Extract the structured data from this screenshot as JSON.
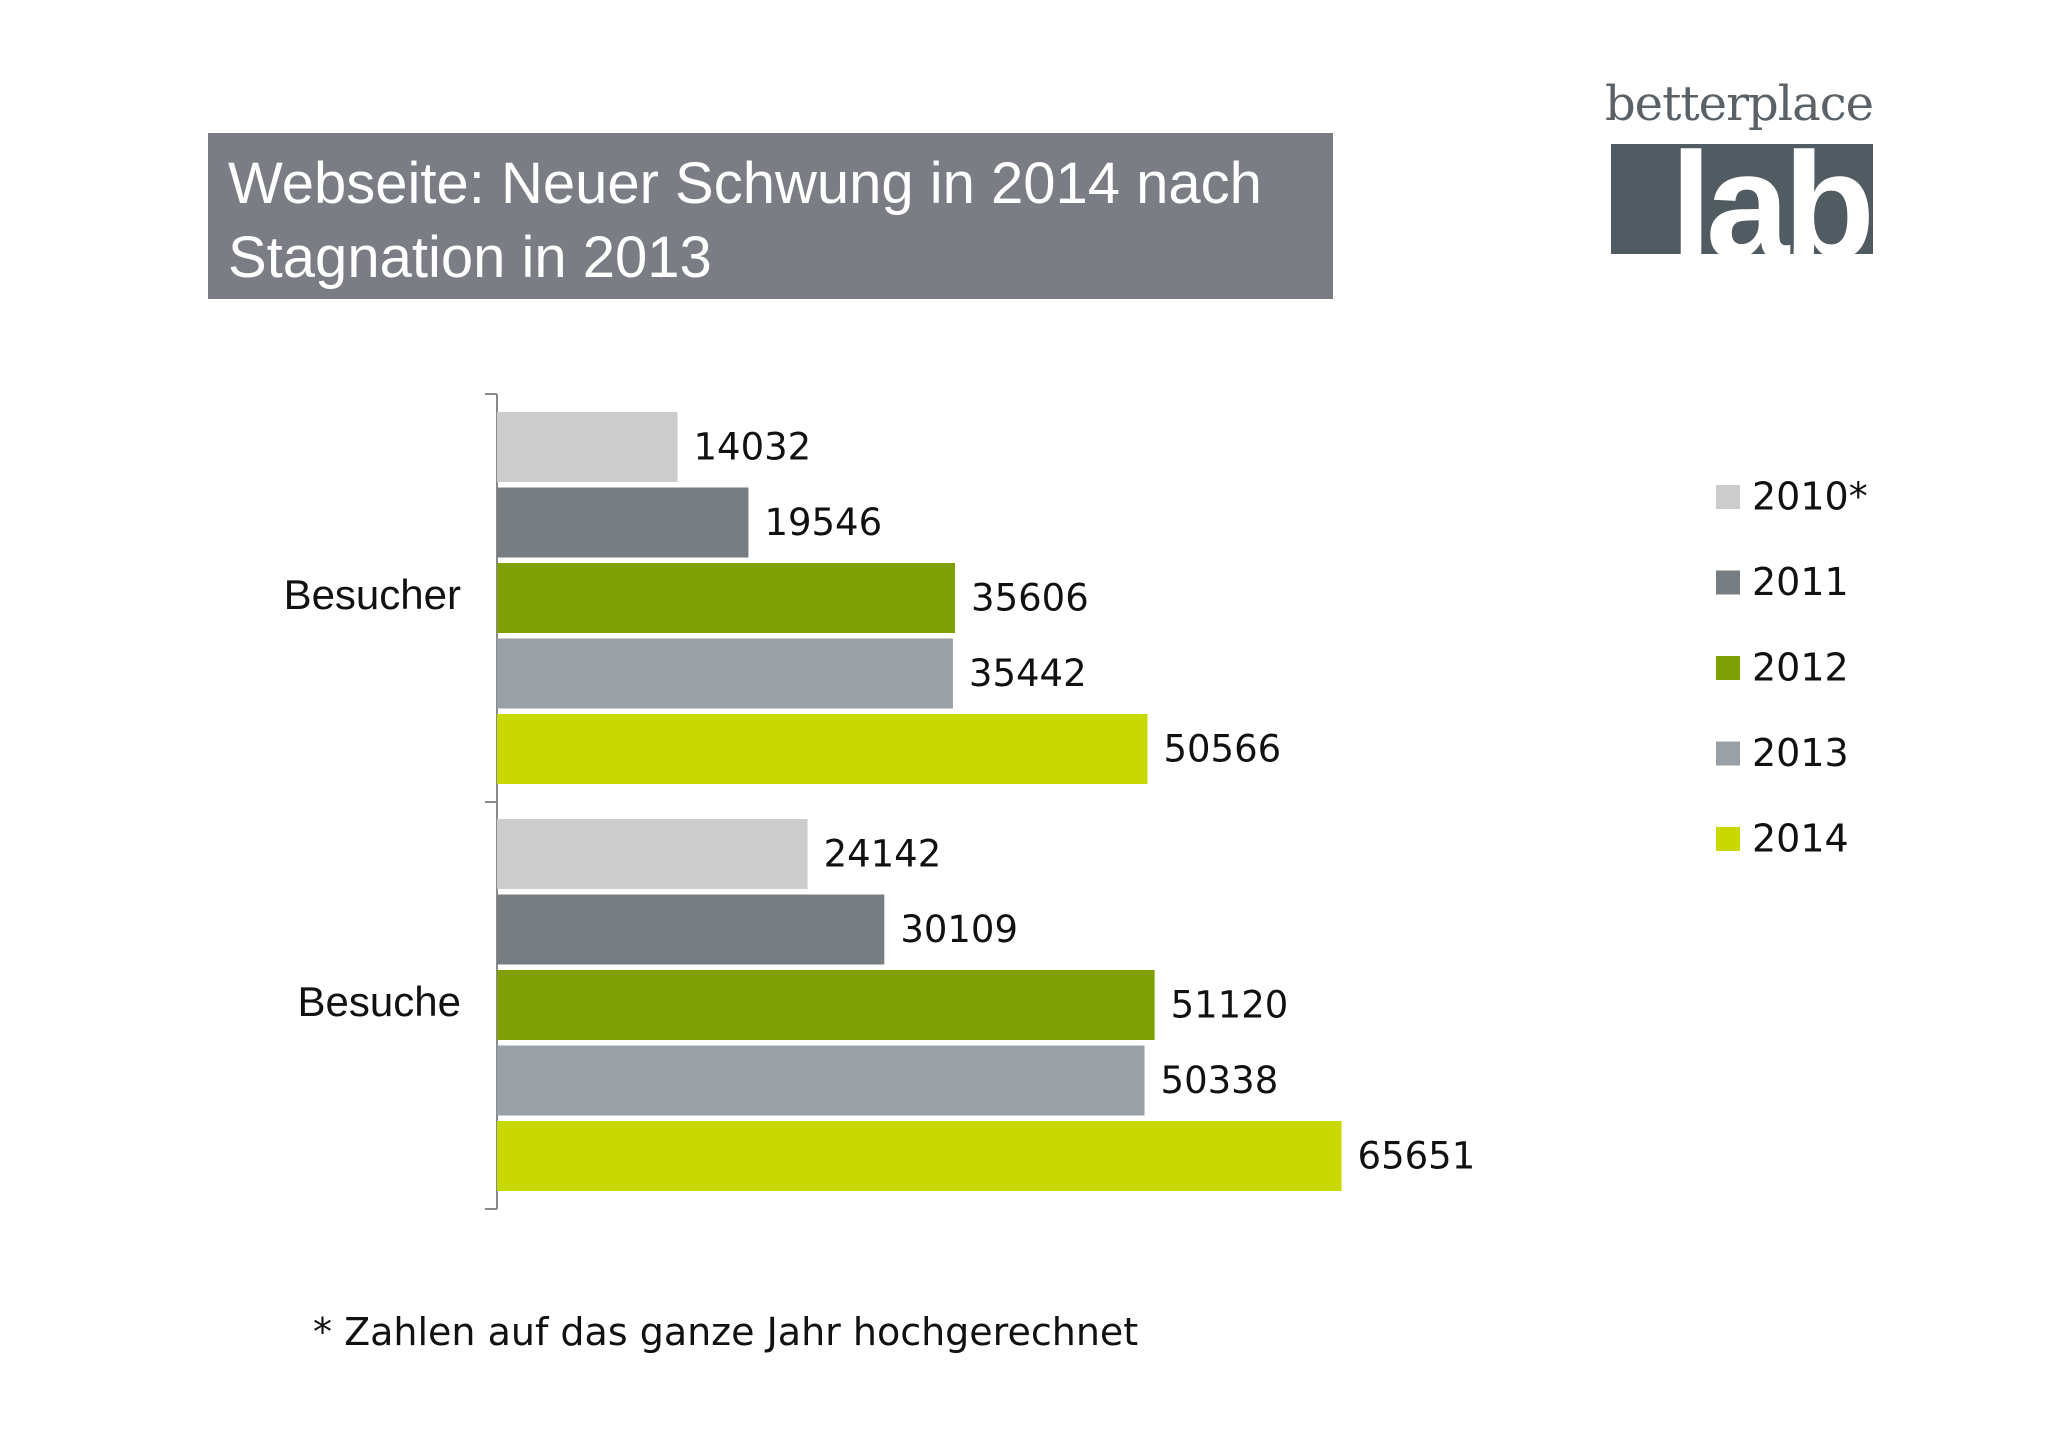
{
  "title": "Webseite: Neuer Schwung in 2014 nach\nStagnation in 2013",
  "logo": {
    "top_text": "betterplace",
    "main_text": "lab"
  },
  "footnote": "* Zahlen auf das ganze Jahr hochgerechnet",
  "chart_data": {
    "type": "bar",
    "orientation": "horizontal",
    "categories": [
      "Besucher",
      "Besuche"
    ],
    "series": [
      {
        "name": "2010*",
        "color": "#cccccc",
        "values": [
          14032,
          24142
        ]
      },
      {
        "name": "2011",
        "color": "#787d82",
        "values": [
          19546,
          30109
        ]
      },
      {
        "name": "2012",
        "color": "#7f9f04",
        "values": [
          35606,
          51120
        ]
      },
      {
        "name": "2013",
        "color": "#9aa1a6",
        "values": [
          35442,
          50338
        ]
      },
      {
        "name": "2014",
        "color": "#c8d900",
        "values": [
          50566,
          65651
        ]
      }
    ],
    "data_labels": true,
    "legend_position": "right",
    "grid": false,
    "xlim": [
      0,
      70000
    ]
  }
}
